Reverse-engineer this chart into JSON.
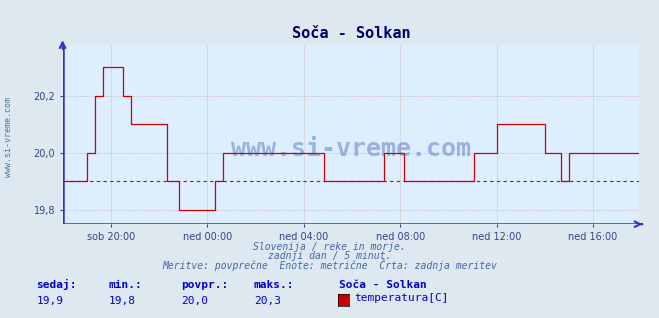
{
  "title": "Soča - Solkan",
  "background_color": "#dde8f0",
  "plot_background": "#ddeeff",
  "grid_color": "#cc9999",
  "line_color": "#cc0000",
  "dashed_line_color": "#cc0000",
  "axis_color": "#3333cc",
  "title_color": "#000066",
  "title_fontsize": 11,
  "watermark_text": "www.si-vreme.com",
  "watermark_color": "#2244aa",
  "ylim": [
    19.75,
    20.38
  ],
  "yticks": [
    19.8,
    20.0,
    20.2
  ],
  "ytick_labels": [
    "19,8",
    "20,0",
    "20,2"
  ],
  "xtick_labels": [
    "sob 20:00",
    "ned 00:00",
    "ned 04:00",
    "ned 08:00",
    "ned 12:00",
    "ned 16:00"
  ],
  "xtick_pos": [
    24,
    72,
    120,
    168,
    216,
    264
  ],
  "n_points": 288,
  "dashed_line_value": 19.9,
  "footer_line1": "Slovenija / reke in morje.",
  "footer_line2": "zadnji dan / 5 minut.",
  "footer_line3": "Meritve: povprečne  Enote: metrične  Črta: zadnja meritev",
  "legend_title": "Soča - Solkan",
  "legend_label": "temperatura[C]",
  "legend_color": "#cc0000",
  "stat_labels": [
    "sedaj:",
    "min.:",
    "povpr.:",
    "maks.:"
  ],
  "stat_values": [
    "19,9",
    "19,8",
    "20,0",
    "20,3"
  ],
  "stat_color": "#0000cc",
  "left_label": "www.si-vreme.com",
  "left_label_color": "#4477aa",
  "tick_color": "#334488",
  "tick_fontsize": 7,
  "footer_color": "#4466aa",
  "footer_fontsize": 7
}
